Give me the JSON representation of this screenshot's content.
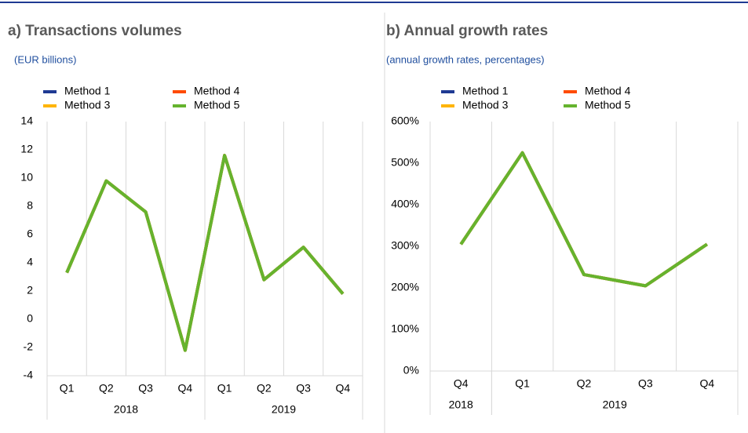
{
  "chart_data": [
    {
      "type": "line",
      "title": "a) Transactions volumes",
      "subtitle": "(EUR billions)",
      "categories": [
        "Q1",
        "Q2",
        "Q3",
        "Q4",
        "Q1",
        "Q2",
        "Q3",
        "Q4"
      ],
      "groups": [
        {
          "label": "2018",
          "count": 4
        },
        {
          "label": "2019",
          "count": 4
        }
      ],
      "series": [
        {
          "name": "Method 1",
          "color": "#1f3a93",
          "values": [
            3.3,
            9.8,
            7.6,
            -2.2,
            11.6,
            2.8,
            5.1,
            1.8
          ]
        },
        {
          "name": "Method 4",
          "color": "#ff4b00",
          "values": [
            3.3,
            9.8,
            7.6,
            -2.2,
            11.6,
            2.8,
            5.1,
            1.8
          ]
        },
        {
          "name": "Method 3",
          "color": "#ffb400",
          "values": [
            3.3,
            9.8,
            7.6,
            -2.2,
            11.6,
            2.8,
            5.1,
            1.8
          ]
        },
        {
          "name": "Method 5",
          "color": "#65b32e",
          "values": [
            3.3,
            9.8,
            7.6,
            -2.2,
            11.6,
            2.8,
            5.1,
            1.8
          ]
        }
      ],
      "ylim": [
        -4,
        14
      ],
      "yticks": [
        -4,
        -2,
        0,
        2,
        4,
        6,
        8,
        10,
        12,
        14
      ]
    },
    {
      "type": "line",
      "title": "b) Annual growth rates",
      "subtitle": "(annual growth rates, percentages)",
      "categories": [
        "Q4",
        "Q1",
        "Q2",
        "Q3",
        "Q4"
      ],
      "groups": [
        {
          "label": "2018",
          "count": 1
        },
        {
          "label": "2019",
          "count": 4
        }
      ],
      "series": [
        {
          "name": "Method 1",
          "color": "#1f3a93",
          "values": [
            305,
            525,
            232,
            205,
            305
          ]
        },
        {
          "name": "Method 4",
          "color": "#ff4b00",
          "values": [
            305,
            525,
            232,
            205,
            305
          ]
        },
        {
          "name": "Method 3",
          "color": "#ffb400",
          "values": [
            305,
            525,
            232,
            205,
            305
          ]
        },
        {
          "name": "Method 5",
          "color": "#65b32e",
          "values": [
            305,
            525,
            232,
            205,
            305
          ]
        }
      ],
      "ylim": [
        0,
        600
      ],
      "yticks": [
        {
          "value": 0,
          "label": "0%"
        },
        {
          "value": 100,
          "label": "100%"
        },
        {
          "value": 200,
          "label": "200%"
        },
        {
          "value": 300,
          "label": "300%"
        },
        {
          "value": 400,
          "label": "400%"
        },
        {
          "value": 500,
          "label": "500%"
        },
        {
          "value": 600,
          "label": "600%"
        }
      ]
    }
  ]
}
